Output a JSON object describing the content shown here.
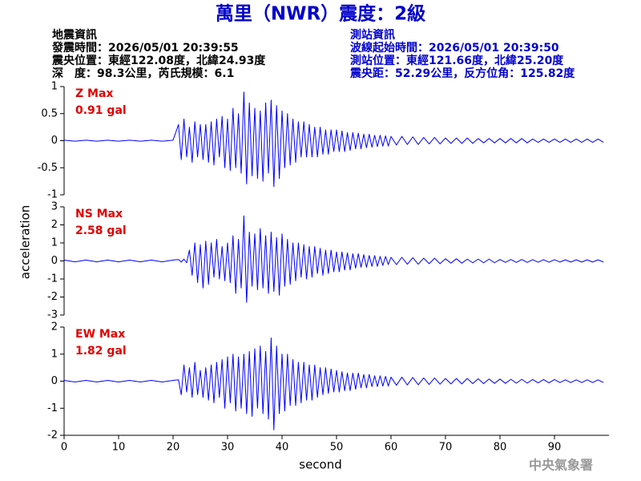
{
  "header": {
    "title": "萬里（NWR）震度：2級",
    "event_info": [
      "地震資訊",
      "發震時間：2026/05/01 20:39:55",
      "震央位置：東經122.08度，北緯24.93度",
      "深　度：98.3公里，芮氏規模：6.1"
    ],
    "station_info": [
      "測站資訊",
      "波線起始時間：2026/05/01 20:39:50",
      "測站位置：東經121.66度，北緯25.20度",
      "震央距：52.29公里，反方位角：125.82度"
    ],
    "watermark": "中央氣象署"
  },
  "chart_data": [
    {
      "type": "line",
      "label": "Z Max",
      "max_label": "0.91 gal",
      "color": "#0000ff",
      "xlim": [
        0,
        100
      ],
      "ylim": [
        -1,
        1
      ],
      "yticks": [
        -1,
        -0.5,
        0,
        0.5,
        1
      ],
      "x": [
        0,
        2,
        4,
        6,
        8,
        10,
        12,
        14,
        16,
        18,
        20,
        21,
        21.5,
        22,
        22.5,
        23,
        23.5,
        24,
        24.5,
        25,
        25.5,
        26,
        26.5,
        27,
        27.5,
        28,
        28.5,
        29,
        29.5,
        30,
        30.5,
        31,
        31.5,
        32,
        32.5,
        33,
        33.5,
        34,
        34.5,
        35,
        35.5,
        36,
        36.5,
        37,
        37.5,
        38,
        38.5,
        39,
        39.5,
        40,
        40.5,
        41,
        41.5,
        42,
        42.5,
        43,
        43.5,
        44,
        44.5,
        45,
        45.5,
        46,
        46.5,
        47,
        47.5,
        48,
        48.5,
        49,
        49.5,
        50,
        50.5,
        51,
        51.5,
        52,
        52.5,
        53,
        53.5,
        54,
        54.5,
        55,
        55.5,
        56,
        56.5,
        57,
        57.5,
        58,
        58.5,
        59,
        59.5,
        60,
        61,
        62,
        63,
        64,
        65,
        66,
        67,
        68,
        69,
        70,
        71,
        72,
        73,
        74,
        75,
        76,
        77,
        78,
        79,
        80,
        81,
        82,
        83,
        84,
        85,
        86,
        87,
        88,
        89,
        90,
        91,
        92,
        93,
        94,
        95,
        96,
        97,
        98,
        99
      ],
      "values": [
        0.01,
        -0.01,
        0.01,
        -0.01,
        0.01,
        -0.01,
        0.01,
        -0.01,
        0.01,
        -0.01,
        0.01,
        0.3,
        -0.35,
        0.4,
        -0.3,
        0.25,
        -0.4,
        0.35,
        -0.3,
        0.3,
        -0.35,
        0.3,
        -0.4,
        0.35,
        -0.45,
        0.4,
        -0.3,
        0.45,
        -0.5,
        0.4,
        -0.55,
        0.6,
        -0.5,
        0.5,
        -0.6,
        0.9,
        -0.8,
        0.7,
        -0.65,
        0.6,
        -0.7,
        0.55,
        -0.75,
        0.7,
        -0.6,
        0.75,
        -0.85,
        0.65,
        -0.7,
        0.55,
        -0.5,
        0.5,
        -0.45,
        0.4,
        -0.4,
        0.35,
        -0.3,
        0.35,
        -0.3,
        0.3,
        -0.3,
        0.25,
        -0.3,
        0.25,
        -0.25,
        0.2,
        -0.25,
        0.2,
        -0.2,
        0.2,
        -0.2,
        0.18,
        -0.2,
        0.15,
        -0.18,
        0.15,
        -0.15,
        0.14,
        -0.15,
        0.12,
        -0.13,
        0.12,
        -0.12,
        0.1,
        -0.11,
        0.1,
        -0.1,
        0.09,
        -0.1,
        0.08,
        -0.08,
        0.08,
        -0.07,
        0.07,
        -0.07,
        0.06,
        -0.06,
        0.06,
        -0.06,
        0.05,
        -0.05,
        0.05,
        -0.05,
        0.05,
        -0.05,
        0.04,
        -0.04,
        0.04,
        -0.04,
        0.04,
        -0.04,
        0.04,
        -0.04,
        0.04,
        -0.04,
        0.03,
        -0.03,
        0.03,
        -0.03,
        0.03,
        -0.03,
        0.03,
        -0.03,
        0.03,
        -0.03,
        0.03,
        -0.03,
        0.03,
        -0.03
      ]
    },
    {
      "type": "line",
      "label": "NS Max",
      "max_label": "2.58 gal",
      "color": "#0000ff",
      "ylabel": "acceleration",
      "xlim": [
        0,
        100
      ],
      "ylim": [
        -3,
        3
      ],
      "yticks": [
        -3,
        -2,
        -1,
        0,
        1,
        2,
        3
      ],
      "x": [
        0,
        2,
        4,
        6,
        8,
        10,
        12,
        14,
        16,
        18,
        20,
        21,
        21.5,
        22,
        22.5,
        23,
        23.5,
        24,
        24.5,
        25,
        25.5,
        26,
        26.5,
        27,
        27.5,
        28,
        28.5,
        29,
        29.5,
        30,
        30.5,
        31,
        31.5,
        32,
        32.5,
        33,
        33.5,
        34,
        34.5,
        35,
        35.5,
        36,
        36.5,
        37,
        37.5,
        38,
        38.5,
        39,
        39.5,
        40,
        40.5,
        41,
        41.5,
        42,
        42.5,
        43,
        43.5,
        44,
        44.5,
        45,
        45.5,
        46,
        46.5,
        47,
        47.5,
        48,
        48.5,
        49,
        49.5,
        50,
        50.5,
        51,
        51.5,
        52,
        52.5,
        53,
        53.5,
        54,
        54.5,
        55,
        55.5,
        56,
        56.5,
        57,
        57.5,
        58,
        58.5,
        59,
        59.5,
        60,
        61,
        62,
        63,
        64,
        65,
        66,
        67,
        68,
        69,
        70,
        71,
        72,
        73,
        74,
        75,
        76,
        77,
        78,
        79,
        80,
        81,
        82,
        83,
        84,
        85,
        86,
        87,
        88,
        89,
        90,
        91,
        92,
        93,
        94,
        95,
        96,
        97,
        98,
        99
      ],
      "values": [
        0.05,
        -0.05,
        0.05,
        -0.05,
        0.05,
        -0.05,
        0.05,
        -0.05,
        0.05,
        -0.05,
        0.05,
        0.08,
        -0.06,
        0.1,
        -0.1,
        0.6,
        -0.8,
        1.0,
        -1.2,
        0.9,
        -1.5,
        1.1,
        -1.3,
        1.0,
        -0.9,
        1.2,
        -1.0,
        0.8,
        -1.1,
        1.0,
        -1.2,
        1.4,
        -1.8,
        1.2,
        -1.5,
        2.5,
        -2.3,
        1.6,
        -1.4,
        1.5,
        -1.6,
        1.8,
        -1.5,
        1.4,
        -1.8,
        1.6,
        -1.7,
        1.3,
        -1.9,
        1.5,
        -1.4,
        1.2,
        -1.3,
        1.0,
        -1.1,
        1.0,
        -0.9,
        0.9,
        -1.0,
        0.8,
        -0.9,
        0.8,
        -0.7,
        0.7,
        -0.8,
        0.6,
        -0.7,
        0.6,
        -0.6,
        0.5,
        -0.6,
        0.5,
        -0.5,
        0.45,
        -0.5,
        0.4,
        -0.4,
        0.4,
        -0.35,
        0.35,
        -0.35,
        0.3,
        -0.3,
        0.3,
        -0.3,
        0.25,
        -0.25,
        0.25,
        -0.2,
        0.2,
        -0.2,
        0.2,
        -0.18,
        0.18,
        -0.18,
        0.15,
        -0.15,
        0.15,
        -0.15,
        0.12,
        -0.12,
        0.12,
        -0.12,
        0.1,
        -0.1,
        0.1,
        -0.1,
        0.1,
        -0.1,
        0.08,
        -0.08,
        0.08,
        -0.08,
        0.08,
        -0.08,
        0.07,
        -0.07,
        0.07,
        -0.07,
        0.07,
        -0.06,
        0.06,
        -0.06,
        0.06,
        -0.06,
        0.06,
        -0.06,
        0.06,
        -0.06
      ]
    },
    {
      "type": "line",
      "label": "EW Max",
      "max_label": "1.82 gal",
      "color": "#0000ff",
      "xlabel": "second",
      "xlim": [
        0,
        100
      ],
      "xticks": [
        0,
        10,
        20,
        30,
        40,
        50,
        60,
        70,
        80,
        90
      ],
      "ylim": [
        -2,
        2
      ],
      "yticks": [
        -2,
        -1,
        0,
        1,
        2
      ],
      "x": [
        0,
        2,
        4,
        6,
        8,
        10,
        12,
        14,
        16,
        18,
        20,
        21,
        21.5,
        22,
        22.5,
        23,
        23.5,
        24,
        24.5,
        25,
        25.5,
        26,
        26.5,
        27,
        27.5,
        28,
        28.5,
        29,
        29.5,
        30,
        30.5,
        31,
        31.5,
        32,
        32.5,
        33,
        33.5,
        34,
        34.5,
        35,
        35.5,
        36,
        36.5,
        37,
        37.5,
        38,
        38.5,
        39,
        39.5,
        40,
        40.5,
        41,
        41.5,
        42,
        42.5,
        43,
        43.5,
        44,
        44.5,
        45,
        45.5,
        46,
        46.5,
        47,
        47.5,
        48,
        48.5,
        49,
        49.5,
        50,
        50.5,
        51,
        51.5,
        52,
        52.5,
        53,
        53.5,
        54,
        54.5,
        55,
        55.5,
        56,
        56.5,
        57,
        57.5,
        58,
        58.5,
        59,
        59.5,
        60,
        61,
        62,
        63,
        64,
        65,
        66,
        67,
        68,
        69,
        70,
        71,
        72,
        73,
        74,
        75,
        76,
        77,
        78,
        79,
        80,
        81,
        82,
        83,
        84,
        85,
        86,
        87,
        88,
        89,
        90,
        91,
        92,
        93,
        94,
        95,
        96,
        97,
        98,
        99
      ],
      "values": [
        0.03,
        -0.03,
        0.03,
        -0.03,
        0.03,
        -0.03,
        0.03,
        -0.03,
        0.03,
        -0.03,
        0.03,
        0.05,
        -0.5,
        0.6,
        -0.4,
        0.5,
        -0.6,
        0.7,
        -0.5,
        0.4,
        -0.6,
        0.5,
        -0.7,
        0.6,
        -0.8,
        0.7,
        -0.6,
        0.8,
        -1.0,
        0.9,
        -0.8,
        1.0,
        -1.1,
        0.9,
        -1.0,
        1.0,
        -1.2,
        1.1,
        -1.3,
        1.2,
        -1.0,
        1.3,
        -1.2,
        1.1,
        -1.4,
        1.6,
        -1.8,
        1.3,
        -1.2,
        1.0,
        -1.1,
        1.0,
        -0.9,
        0.8,
        -0.9,
        0.7,
        -0.8,
        0.7,
        -0.7,
        0.6,
        -0.7,
        0.6,
        -0.6,
        0.5,
        -0.5,
        0.5,
        -0.45,
        0.45,
        -0.4,
        0.4,
        -0.4,
        0.35,
        -0.35,
        0.3,
        -0.35,
        0.3,
        -0.3,
        0.3,
        -0.25,
        0.25,
        -0.25,
        0.25,
        -0.2,
        0.2,
        -0.2,
        0.2,
        -0.18,
        0.18,
        -0.18,
        0.15,
        -0.15,
        0.15,
        -0.14,
        0.14,
        -0.13,
        0.12,
        -0.12,
        0.12,
        -0.11,
        0.1,
        -0.1,
        0.1,
        -0.1,
        0.1,
        -0.09,
        0.09,
        -0.09,
        0.08,
        -0.08,
        0.08,
        -0.08,
        0.07,
        -0.07,
        0.07,
        -0.07,
        0.06,
        -0.06,
        0.06,
        -0.06,
        0.06,
        -0.05,
        0.05,
        -0.05,
        0.05,
        -0.05,
        0.05,
        -0.05,
        0.05,
        -0.05
      ]
    }
  ]
}
